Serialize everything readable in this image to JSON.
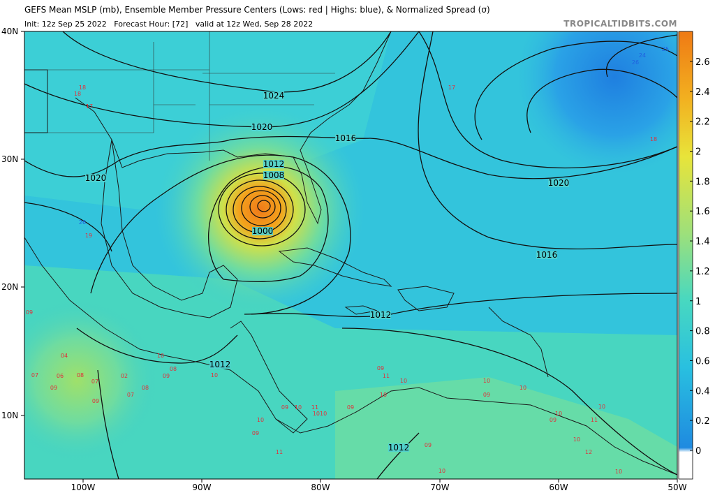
{
  "header": {
    "title": "GEFS Mean MSLP (mb), Ensemble Member Pressure Centers (Lows: red | Highs: blue), & Normalized Spread (σ)",
    "subtitle": "Init: 12z Sep 25 2022   Forecast Hour: [72]   valid at 12z Wed, Sep 28 2022",
    "site": "TROPICALTIDBITS.COM"
  },
  "axes": {
    "lat_labels": [
      "40N",
      "30N",
      "20N",
      "10N"
    ],
    "lon_labels": [
      "100W",
      "90W",
      "80W",
      "70W",
      "60W",
      "50W"
    ]
  },
  "colorbar": {
    "ticks": [
      "0",
      "0.2",
      "0.4",
      "0.6",
      "0.8",
      "1",
      "1.2",
      "1.4",
      "1.6",
      "1.8",
      "2",
      "2.2",
      "2.4",
      "2.6"
    ]
  },
  "isobars": {
    "labels": [
      "1024",
      "1020",
      "1016",
      "1012",
      "1008",
      "1000",
      "1020",
      "1020",
      "1016",
      "1012",
      "1012",
      "1012"
    ]
  },
  "members": {
    "lows": [
      "18",
      "18",
      "17",
      "17",
      "18",
      "19",
      "09",
      "04",
      "07",
      "06",
      "09",
      "08",
      "07",
      "02",
      "07",
      "08",
      "09",
      "10",
      "09",
      "08",
      "10",
      "09",
      "11",
      "10",
      "10",
      "10",
      "10",
      "09",
      "10",
      "09",
      "11",
      "10",
      "10",
      "12",
      "10",
      "10",
      "09",
      "11",
      "09",
      "10",
      "09",
      "10",
      "11",
      "09",
      "1010"
    ],
    "highs": [
      "24",
      "25",
      "26",
      "26"
    ]
  }
}
